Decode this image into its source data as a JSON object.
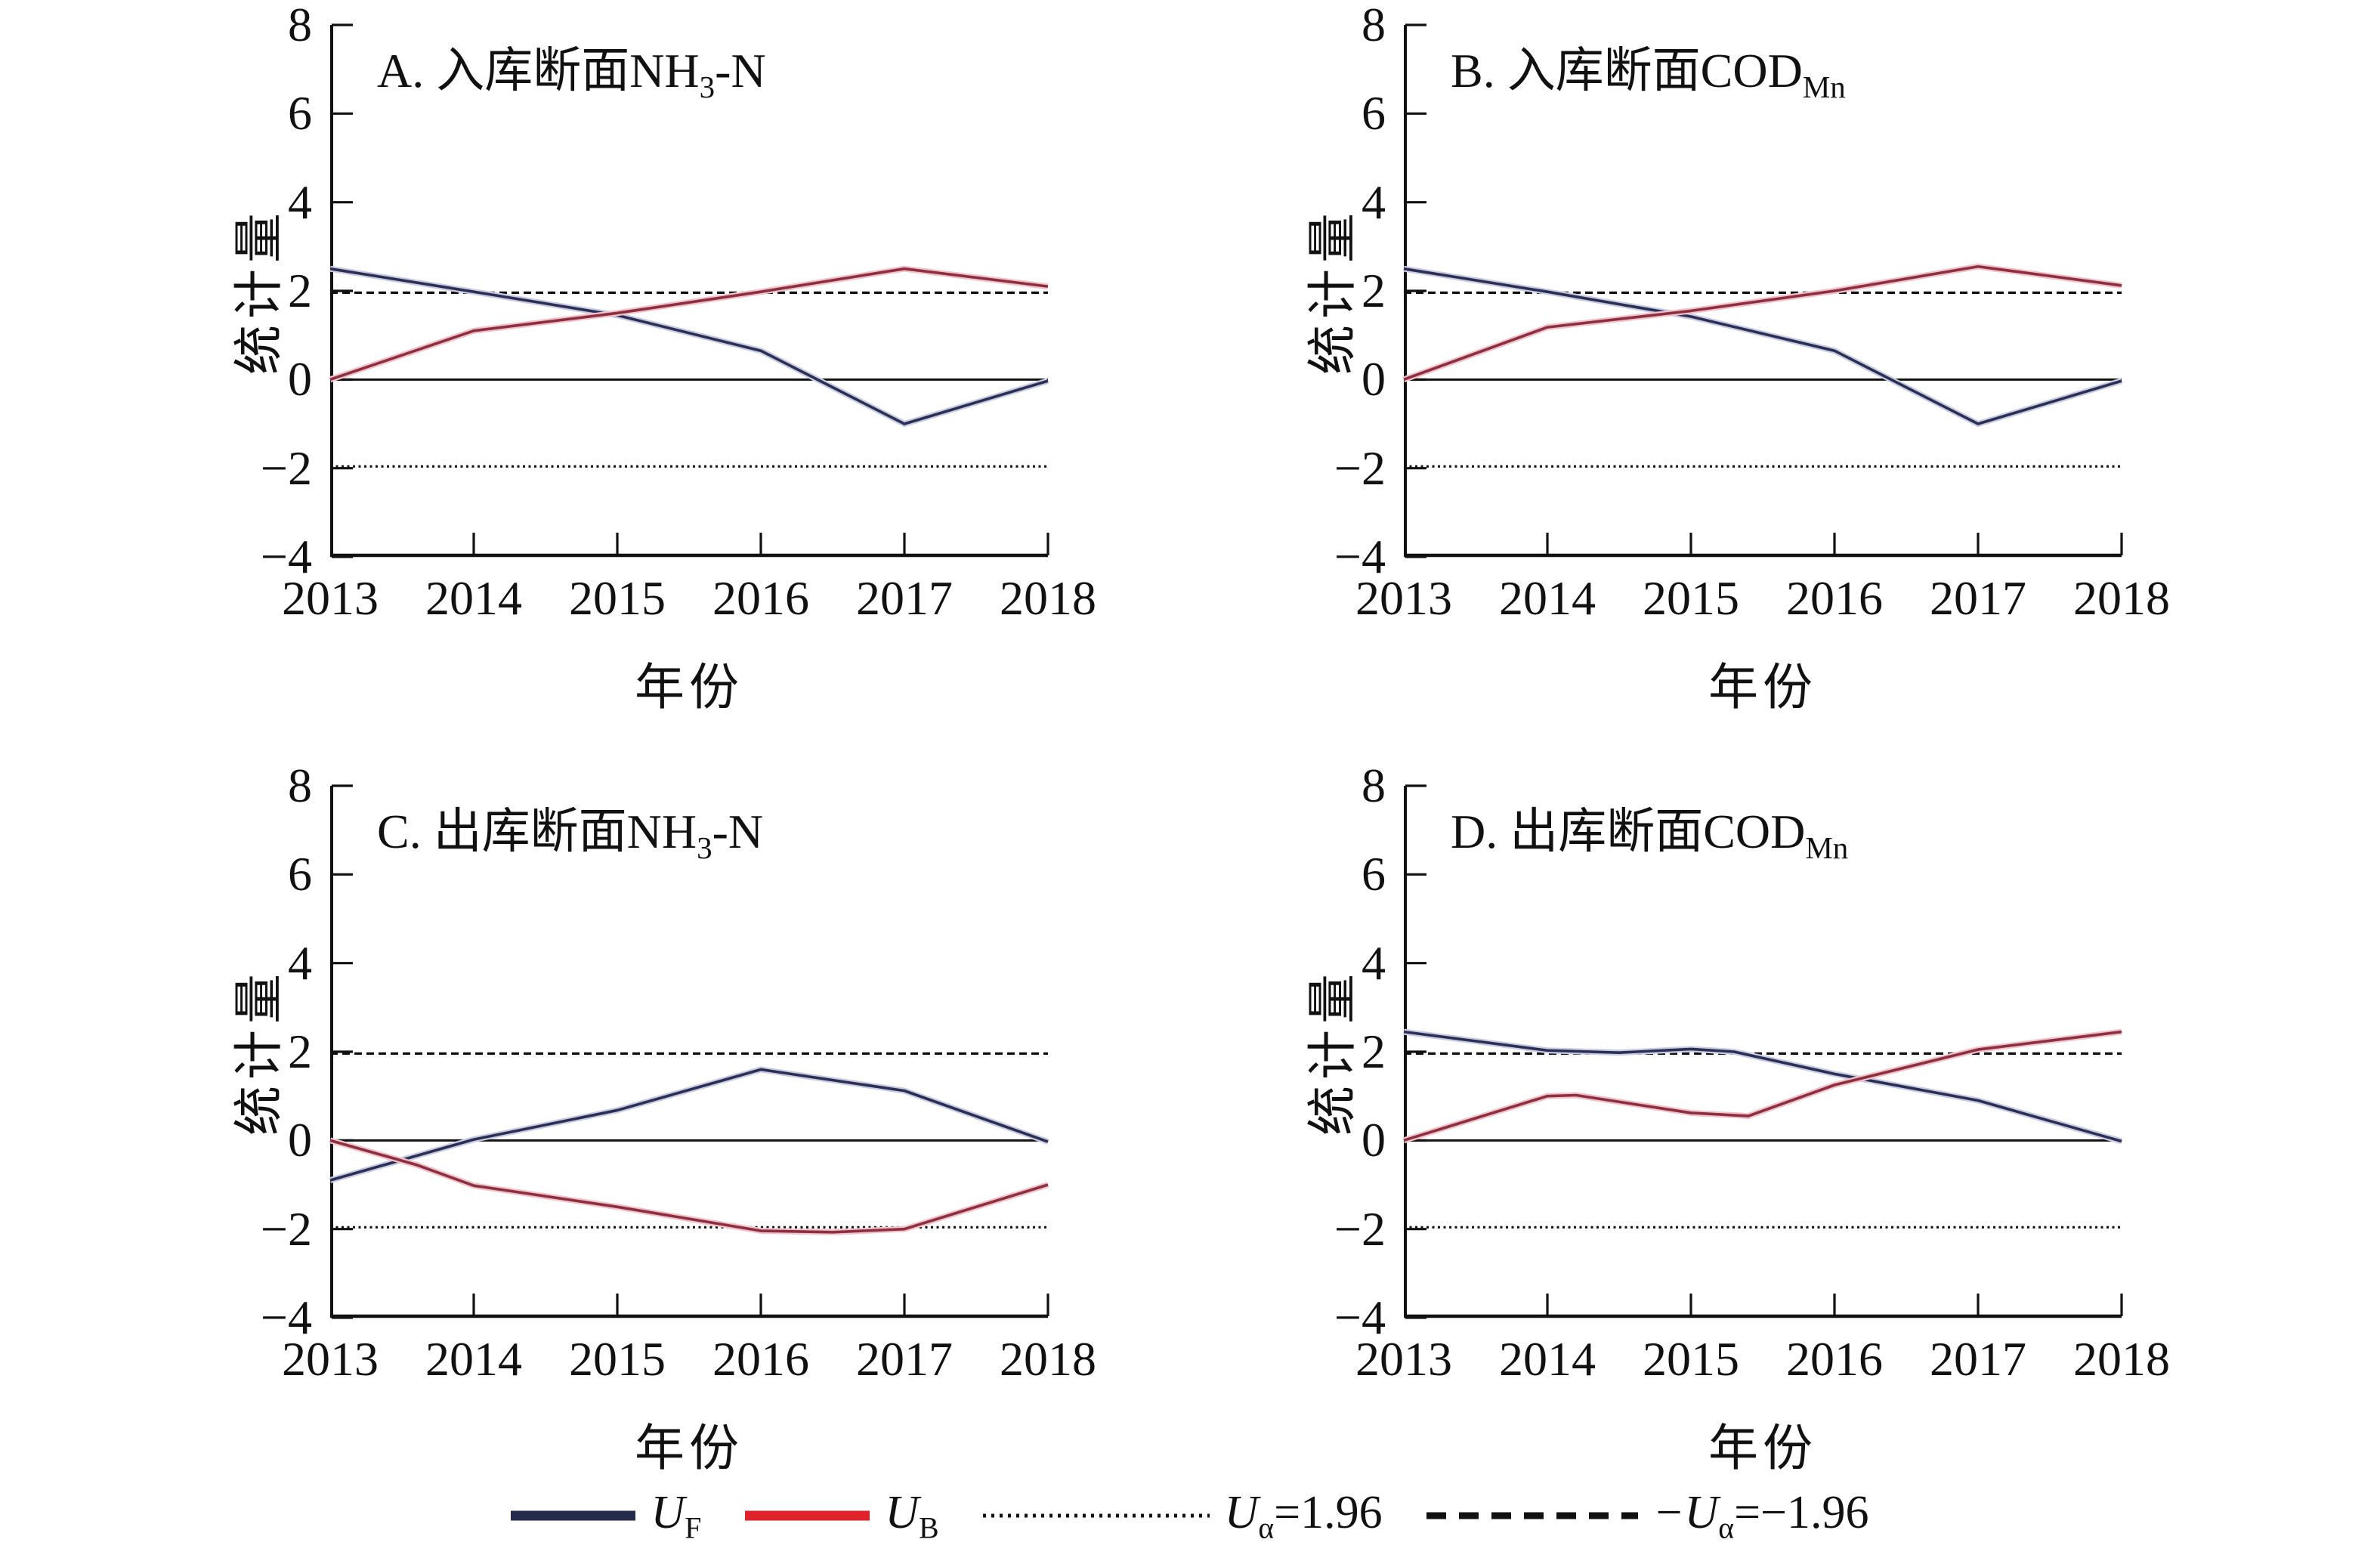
{
  "figure": {
    "background": "#ffffff"
  },
  "colors": {
    "uf": "#2a2f55",
    "uf_halo": "#c9cbe0",
    "ub": "#8f2e3c",
    "ub_halo": "#eec3cd",
    "legend_uf": "#252b4d",
    "legend_ub": "#e0222a",
    "axis": "#111111",
    "ref": "#111111"
  },
  "axes": {
    "ylabel": "统计量",
    "xlabel": "年份",
    "yticks": [
      "8",
      "6",
      "4",
      "2",
      "0",
      "−2",
      "−4"
    ],
    "ytick_values": [
      8,
      6,
      4,
      2,
      0,
      -2,
      -4
    ],
    "xticks": [
      "2013",
      "2014",
      "2015",
      "2016",
      "2017",
      "2018"
    ],
    "xtick_values": [
      2013,
      2014,
      2015,
      2016,
      2017,
      2018
    ],
    "ylim": [
      -4,
      8
    ],
    "xlim": [
      2013,
      2018
    ],
    "ref_upper": 1.96,
    "ref_lower": -1.96
  },
  "legend": {
    "items": [
      {
        "kind": "solid",
        "color_key": "legend_uf",
        "main": "U",
        "sub": "F",
        "suffix": ""
      },
      {
        "kind": "solid",
        "color_key": "legend_ub",
        "main": "U",
        "sub": "B",
        "suffix": ""
      },
      {
        "kind": "dotted",
        "color_key": "ref",
        "main": "U",
        "sub": "α",
        "suffix": "=1.96"
      },
      {
        "kind": "dashed",
        "color_key": "ref",
        "main": "−U",
        "sub": "α",
        "suffix": "=−1.96"
      }
    ]
  },
  "chart_data": [
    {
      "type": "line",
      "panel": "A",
      "title": {
        "prefix": "A. 入库断面NH",
        "sub": "3",
        "suffix": "-N"
      },
      "x": [
        2013,
        2014,
        2015,
        2016,
        2017,
        2018
      ],
      "ylim": [
        -4,
        8
      ],
      "series": [
        {
          "name": "UF",
          "points": [
            [
              2013,
              2.5
            ],
            [
              2014,
              1.98
            ],
            [
              2015,
              1.45
            ],
            [
              2016,
              0.65
            ],
            [
              2017,
              -1.0
            ],
            [
              2018,
              -0.03
            ]
          ]
        },
        {
          "name": "UB",
          "points": [
            [
              2013,
              0
            ],
            [
              2014,
              1.1
            ],
            [
              2015,
              1.5
            ],
            [
              2016,
              1.98
            ],
            [
              2017,
              2.5
            ],
            [
              2018,
              2.1
            ]
          ]
        }
      ]
    },
    {
      "type": "line",
      "panel": "B",
      "title": {
        "prefix": "B. 入库断面COD",
        "sub": "Mn",
        "suffix": ""
      },
      "x": [
        2013,
        2014,
        2015,
        2016,
        2017,
        2018
      ],
      "ylim": [
        -4,
        8
      ],
      "series": [
        {
          "name": "UF",
          "points": [
            [
              2013,
              2.5
            ],
            [
              2014,
              1.98
            ],
            [
              2015,
              1.42
            ],
            [
              2016,
              0.65
            ],
            [
              2017,
              -1.0
            ],
            [
              2018,
              -0.03
            ]
          ]
        },
        {
          "name": "UB",
          "points": [
            [
              2013,
              0
            ],
            [
              2014,
              1.18
            ],
            [
              2015,
              1.55
            ],
            [
              2016,
              2.0
            ],
            [
              2017,
              2.55
            ],
            [
              2018,
              2.12
            ]
          ]
        }
      ]
    },
    {
      "type": "line",
      "panel": "C",
      "title": {
        "prefix": "C. 出库断面NH",
        "sub": "3",
        "suffix": "-N"
      },
      "x": [
        2013,
        2014,
        2015,
        2016,
        2017,
        2018
      ],
      "ylim": [
        -4,
        8
      ],
      "series": [
        {
          "name": "UF",
          "points": [
            [
              2013,
              -0.9
            ],
            [
              2014,
              0.02
            ],
            [
              2015,
              0.68
            ],
            [
              2016,
              1.6
            ],
            [
              2017,
              1.12
            ],
            [
              2018,
              -0.03
            ]
          ]
        },
        {
          "name": "UB",
          "points": [
            [
              2013,
              0
            ],
            [
              2013.6,
              -0.55
            ],
            [
              2014,
              -1.02
            ],
            [
              2015,
              -1.5
            ],
            [
              2016,
              -2.04
            ],
            [
              2016.5,
              -2.07
            ],
            [
              2017,
              -2.0
            ],
            [
              2018,
              -1.0
            ]
          ]
        }
      ]
    },
    {
      "type": "line",
      "panel": "D",
      "title": {
        "prefix": "D. 出库断面COD",
        "sub": "Mn",
        "suffix": ""
      },
      "x": [
        2013,
        2014,
        2015,
        2016,
        2017,
        2018
      ],
      "ylim": [
        -4,
        8
      ],
      "series": [
        {
          "name": "UF",
          "points": [
            [
              2013,
              2.45
            ],
            [
              2014,
              2.03
            ],
            [
              2014.5,
              1.98
            ],
            [
              2015,
              2.06
            ],
            [
              2015.3,
              2.0
            ],
            [
              2016,
              1.5
            ],
            [
              2017,
              0.9
            ],
            [
              2018,
              -0.02
            ]
          ]
        },
        {
          "name": "UB",
          "points": [
            [
              2013,
              0
            ],
            [
              2014,
              1.0
            ],
            [
              2014.2,
              1.02
            ],
            [
              2015,
              0.62
            ],
            [
              2015.4,
              0.55
            ],
            [
              2016,
              1.25
            ],
            [
              2017,
              2.05
            ],
            [
              2018,
              2.45
            ]
          ]
        }
      ]
    }
  ]
}
